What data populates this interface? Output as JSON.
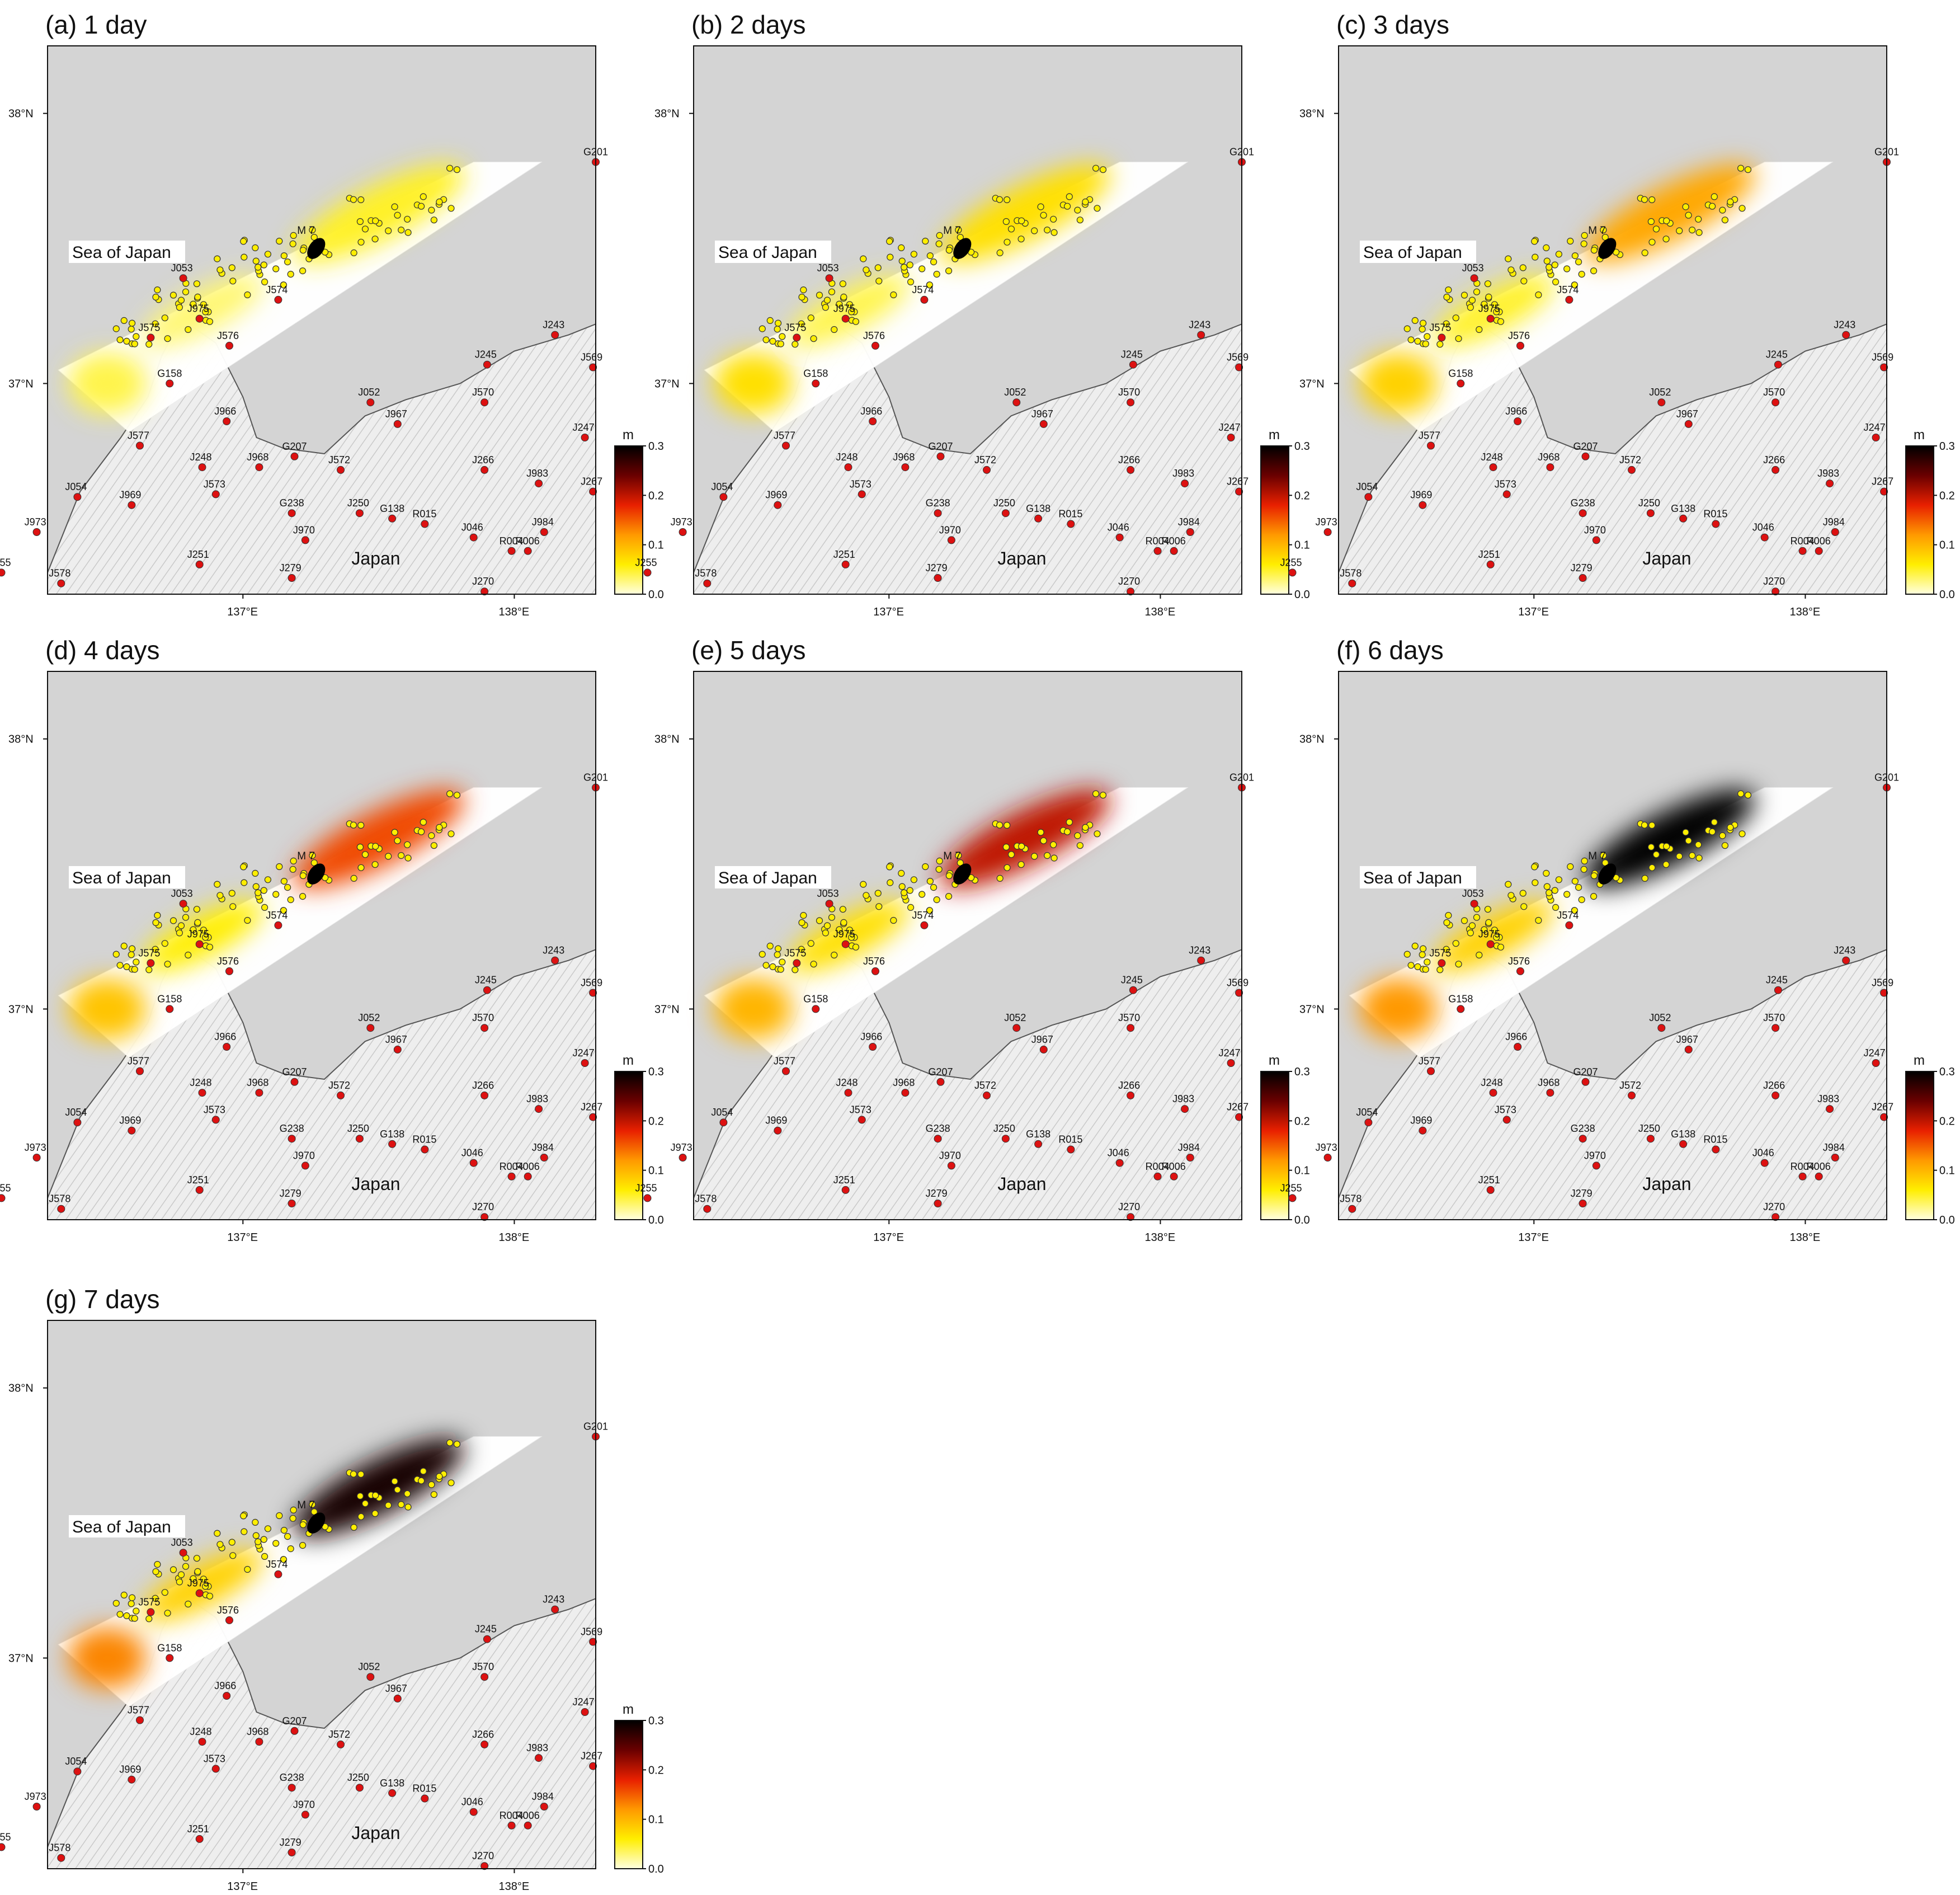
{
  "figure": {
    "panels": [
      {
        "label": "(a) 1 day",
        "slip": {
          "main": 0.05,
          "west": 0.03,
          "far_west": 0.04
        }
      },
      {
        "label": "(b) 2 days",
        "slip": {
          "main": 0.07,
          "west": 0.04,
          "far_west": 0.07
        }
      },
      {
        "label": "(c) 3 days",
        "slip": {
          "main": 0.11,
          "west": 0.05,
          "far_west": 0.08
        }
      },
      {
        "label": "(d) 4 days",
        "slip": {
          "main": 0.16,
          "west": 0.06,
          "far_west": 0.09
        }
      },
      {
        "label": "(e) 5 days",
        "slip": {
          "main": 0.2,
          "west": 0.07,
          "far_west": 0.1
        }
      },
      {
        "label": "(f) 6 days",
        "slip": {
          "main": 0.3,
          "west": 0.08,
          "far_west": 0.12
        }
      },
      {
        "label": "(g) 7 days",
        "slip": {
          "main": 0.29,
          "west": 0.08,
          "far_west": 0.13
        }
      }
    ],
    "map_text": {
      "sea_label": "Sea of Japan",
      "land_label": "Japan",
      "mainshock_label": "M 7",
      "lon_ticks": [
        "137°E",
        "138°E"
      ],
      "lat_ticks": [
        "37°N",
        "38°N"
      ]
    },
    "colorbar": {
      "unit": "m",
      "ticks": [
        "0.0",
        "0.1",
        "0.2",
        "0.3"
      ],
      "range": [
        0.0,
        0.3
      ],
      "colors": [
        "#ffffe0",
        "#ffee00",
        "#ff9900",
        "#e82000",
        "#6a0000",
        "#000000"
      ]
    },
    "colors": {
      "sea": "#d4d4d4",
      "land": "#eeeeee",
      "station": "#dd1111",
      "aftershock": "#ffee00",
      "mainshock": "#000000"
    },
    "stations": [
      {
        "name": "J053",
        "lon": 136.78,
        "lat": 37.39
      },
      {
        "name": "J575",
        "lon": 136.66,
        "lat": 37.17
      },
      {
        "name": "J975",
        "lon": 136.84,
        "lat": 37.24
      },
      {
        "name": "J576",
        "lon": 136.95,
        "lat": 37.14
      },
      {
        "name": "J574",
        "lon": 137.13,
        "lat": 37.31
      },
      {
        "name": "G158",
        "lon": 136.73,
        "lat": 37.0
      },
      {
        "name": "J966",
        "lon": 136.94,
        "lat": 36.86
      },
      {
        "name": "J577",
        "lon": 136.62,
        "lat": 36.77
      },
      {
        "name": "J054",
        "lon": 136.39,
        "lat": 36.58
      },
      {
        "name": "J973",
        "lon": 136.24,
        "lat": 36.45
      },
      {
        "name": "J255",
        "lon": 136.11,
        "lat": 36.3
      },
      {
        "name": "J578",
        "lon": 136.33,
        "lat": 36.26
      },
      {
        "name": "J969",
        "lon": 136.59,
        "lat": 36.55
      },
      {
        "name": "J248",
        "lon": 136.85,
        "lat": 36.69
      },
      {
        "name": "J573",
        "lon": 136.9,
        "lat": 36.59
      },
      {
        "name": "J251",
        "lon": 136.84,
        "lat": 36.33
      },
      {
        "name": "J968",
        "lon": 137.06,
        "lat": 36.69
      },
      {
        "name": "G207",
        "lon": 137.19,
        "lat": 36.73
      },
      {
        "name": "J572",
        "lon": 137.36,
        "lat": 36.68
      },
      {
        "name": "G238",
        "lon": 137.18,
        "lat": 36.52
      },
      {
        "name": "J970",
        "lon": 137.23,
        "lat": 36.42
      },
      {
        "name": "J279",
        "lon": 137.18,
        "lat": 36.28
      },
      {
        "name": "J052",
        "lon": 137.47,
        "lat": 36.93
      },
      {
        "name": "J967",
        "lon": 137.57,
        "lat": 36.85
      },
      {
        "name": "J250",
        "lon": 137.43,
        "lat": 36.52
      },
      {
        "name": "G138",
        "lon": 137.55,
        "lat": 36.5
      },
      {
        "name": "R015",
        "lon": 137.67,
        "lat": 36.48
      },
      {
        "name": "J245",
        "lon": 137.9,
        "lat": 37.07
      },
      {
        "name": "J570",
        "lon": 137.89,
        "lat": 36.93
      },
      {
        "name": "J243",
        "lon": 138.15,
        "lat": 37.18
      },
      {
        "name": "J569",
        "lon": 138.29,
        "lat": 37.06
      },
      {
        "name": "J247",
        "lon": 138.26,
        "lat": 36.8
      },
      {
        "name": "J266",
        "lon": 137.89,
        "lat": 36.68
      },
      {
        "name": "J983",
        "lon": 138.09,
        "lat": 36.63
      },
      {
        "name": "J267",
        "lon": 138.29,
        "lat": 36.6
      },
      {
        "name": "J046",
        "lon": 137.85,
        "lat": 36.43
      },
      {
        "name": "J984",
        "lon": 138.11,
        "lat": 36.45
      },
      {
        "name": "R004",
        "lon": 137.99,
        "lat": 36.38
      },
      {
        "name": "R006",
        "lon": 138.05,
        "lat": 36.38
      },
      {
        "name": "J270",
        "lon": 137.89,
        "lat": 36.23
      },
      {
        "name": "G201",
        "lon": 138.3,
        "lat": 37.82
      }
    ]
  }
}
